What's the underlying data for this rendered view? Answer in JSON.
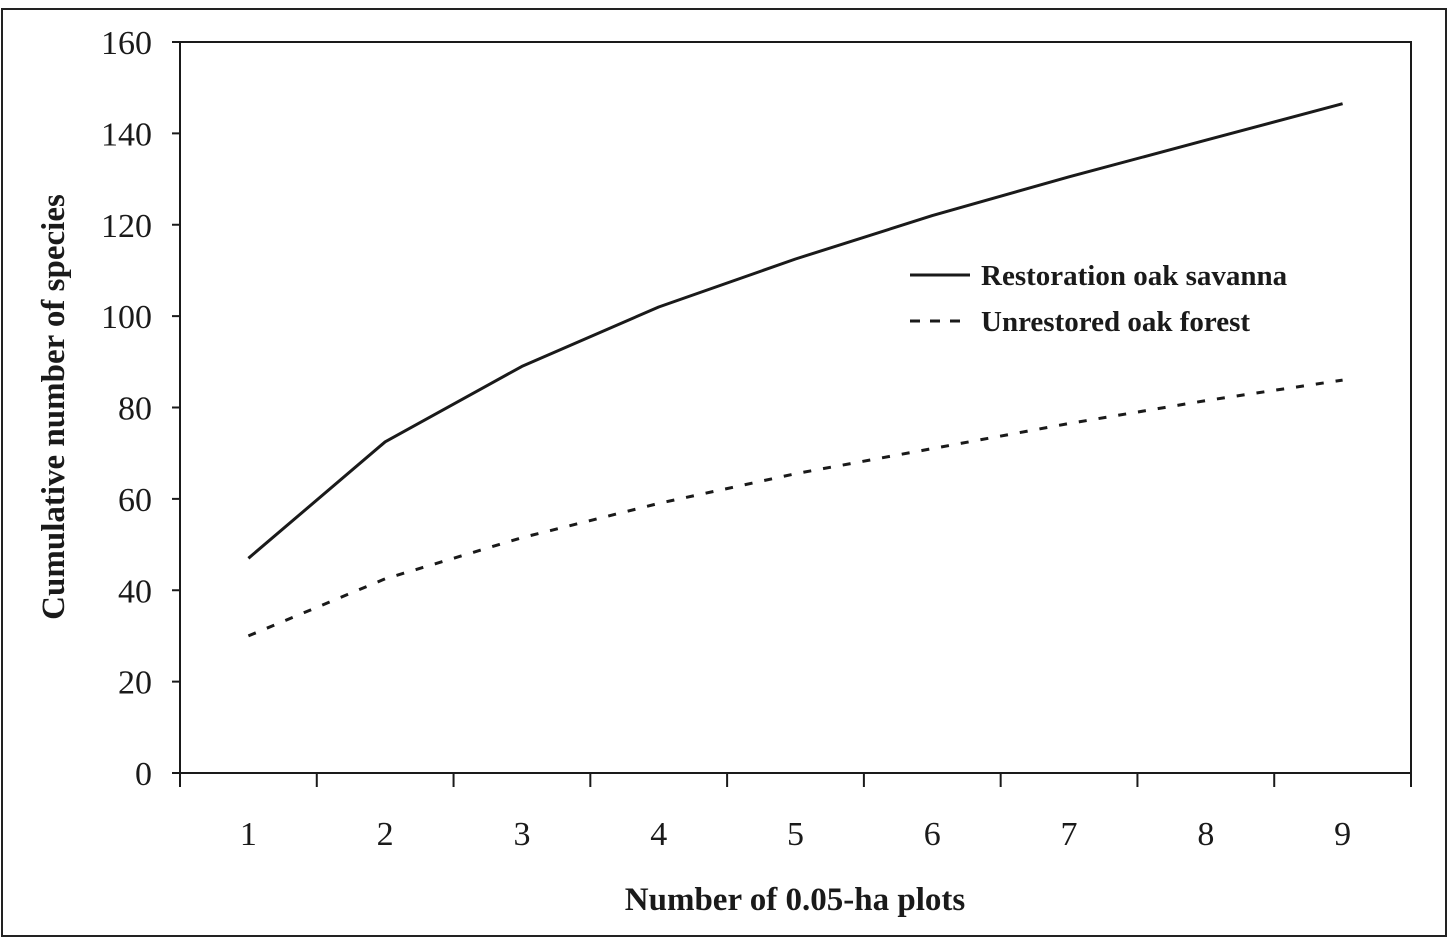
{
  "chart_data": {
    "type": "line",
    "title": "",
    "xlabel": "Number of 0.05-ha plots",
    "ylabel": "Cumulative number of species",
    "x": [
      1,
      2,
      3,
      4,
      5,
      6,
      7,
      8,
      9
    ],
    "xlim": [
      0.5,
      9.5
    ],
    "ylim": [
      0,
      160
    ],
    "yticks": [
      0,
      20,
      40,
      60,
      80,
      100,
      120,
      140,
      160
    ],
    "grid": false,
    "legend_position": "right",
    "series": [
      {
        "name": "Restoration oak savanna",
        "line_style": "solid",
        "color": "#1a1a1a",
        "values": [
          47,
          72.5,
          89,
          102,
          112.5,
          122,
          130.5,
          138.5,
          146.5
        ]
      },
      {
        "name": "Unrestored oak forest",
        "line_style": "dashed",
        "color": "#1a1a1a",
        "values": [
          30,
          42.5,
          51.5,
          59,
          65.5,
          71,
          76.5,
          81.5,
          86
        ]
      }
    ]
  }
}
